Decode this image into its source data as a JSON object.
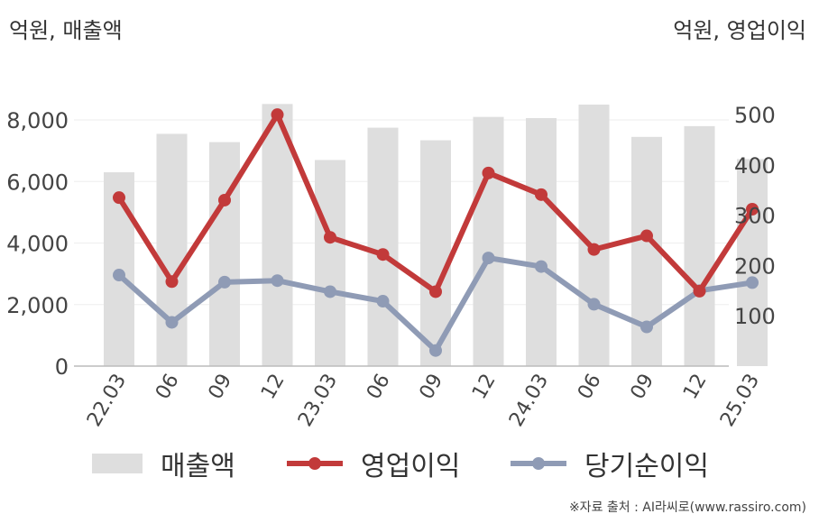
{
  "units": {
    "left": "억원, 매출액",
    "right": "억원, 영업이익"
  },
  "source": "※자료 출처 : AI라씨로(www.rassiro.com)",
  "colors": {
    "bar": "#dedede",
    "op": "#c23a3a",
    "net": "#8f9bb5",
    "grid": "#eeeeee",
    "axis": "#bbbbbb"
  },
  "chart_data": {
    "type": "bar+line",
    "categories": [
      "22.03",
      "06",
      "09",
      "12",
      "23.03",
      "06",
      "09",
      "12",
      "24.03",
      "06",
      "09",
      "12",
      "25.03"
    ],
    "y_left": {
      "label": "억원, 매출액",
      "ylim": [
        0,
        8500
      ],
      "ticks": [
        0,
        2000,
        4000,
        6000,
        8000
      ],
      "tick_labels": [
        "0",
        "2,000",
        "4,000",
        "6,000",
        "8,000"
      ]
    },
    "y_right": {
      "label": "억원, 영업이익",
      "ylim": [
        0,
        520
      ],
      "ticks": [
        100,
        200,
        300,
        400,
        500
      ],
      "tick_labels": [
        "100",
        "200",
        "300",
        "400",
        "500"
      ]
    },
    "series": [
      {
        "name": "매출액",
        "kind": "bar",
        "axis": "left",
        "values": [
          6300,
          7550,
          7280,
          8520,
          6700,
          7750,
          7340,
          8100,
          8060,
          8500,
          7450,
          7800,
          6730
        ]
      },
      {
        "name": "영업이익",
        "kind": "line",
        "axis": "right",
        "values": [
          335,
          168,
          330,
          500,
          256,
          222,
          148,
          384,
          341,
          232,
          259,
          149,
          312
        ]
      },
      {
        "name": "당기순이익",
        "kind": "line",
        "axis": "right",
        "values": [
          181,
          87,
          167,
          170,
          148,
          129,
          31,
          215,
          198,
          123,
          78,
          150,
          166
        ]
      }
    ],
    "grid": true,
    "legend": "bottom"
  }
}
